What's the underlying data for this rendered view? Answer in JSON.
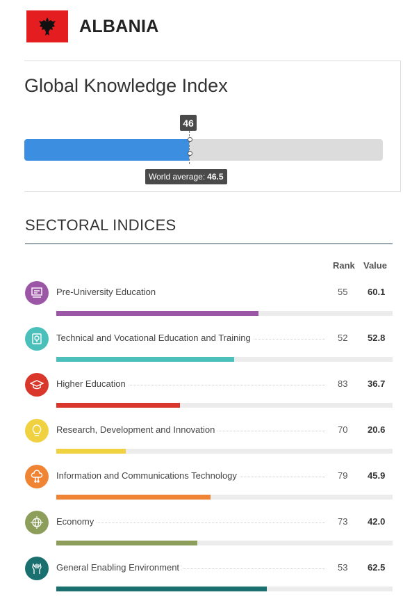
{
  "header": {
    "country": "ALBANIA",
    "flag_color": "#e41e20",
    "flag_icon": "albania-eagle-icon"
  },
  "gki": {
    "title": "Global Knowledge Index",
    "score": "46",
    "score_value": 46,
    "max_value": 100,
    "world_average_label": "World average:",
    "world_average": "46.5",
    "fill_color": "#3c8ee0"
  },
  "sectoral": {
    "title": "SECTORAL INDICES",
    "rank_header": "Rank",
    "value_header": "Value",
    "items": [
      {
        "label": "Pre-University Education",
        "rank": "55",
        "value": "60.1",
        "fraction": 0.601,
        "color": "#9b57a6",
        "icon": "school-board-icon"
      },
      {
        "label": "Technical and Vocational Education and Training",
        "rank": "52",
        "value": "52.8",
        "fraction": 0.528,
        "color": "#4bbfb9",
        "icon": "certificate-icon"
      },
      {
        "label": "Higher Education",
        "rank": "83",
        "value": "36.7",
        "fraction": 0.367,
        "color": "#d9372b",
        "icon": "graduation-cap-icon"
      },
      {
        "label": "Research, Development and Innovation",
        "rank": "70",
        "value": "20.6",
        "fraction": 0.206,
        "color": "#f0d140",
        "icon": "lightbulb-icon"
      },
      {
        "label": "Information and Communications Technology",
        "rank": "79",
        "value": "45.9",
        "fraction": 0.459,
        "color": "#ef8434",
        "icon": "cloud-network-icon"
      },
      {
        "label": "Economy",
        "rank": "73",
        "value": "42.0",
        "fraction": 0.42,
        "color": "#8c9e5a",
        "icon": "globe-icon"
      },
      {
        "label": "General Enabling Environment",
        "rank": "53",
        "value": "62.5",
        "fraction": 0.625,
        "color": "#1a6f6f",
        "icon": "hands-icon"
      }
    ]
  }
}
